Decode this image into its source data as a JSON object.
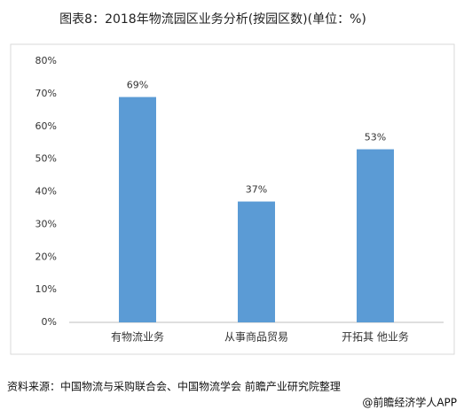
{
  "chart_data": {
    "type": "bar",
    "title": "图表8：2018年物流园区业务分析(按园区数)(单位：%)",
    "categories": [
      "有物流业务",
      "从事商品贸易",
      "开拓其 他业务"
    ],
    "values": [
      69,
      37,
      53
    ],
    "value_labels": [
      "69%",
      "37%",
      "53%"
    ],
    "color": "#5b9bd5",
    "ylim": [
      0,
      80
    ],
    "yticks": [
      {
        "value": 0,
        "label": "0%"
      },
      {
        "value": 10,
        "label": "10%"
      },
      {
        "value": 20,
        "label": "20%"
      },
      {
        "value": 30,
        "label": "30%"
      },
      {
        "value": 40,
        "label": "40%"
      },
      {
        "value": 50,
        "label": "50%"
      },
      {
        "value": 60,
        "label": "60%"
      },
      {
        "value": 70,
        "label": "70%"
      },
      {
        "value": 80,
        "label": "80%"
      }
    ],
    "grid": false,
    "source": "资料来源：中国物流与采购联合会、中国物流学会 前瞻产业研究院整理",
    "footer": "@前瞻经济学人APP"
  }
}
